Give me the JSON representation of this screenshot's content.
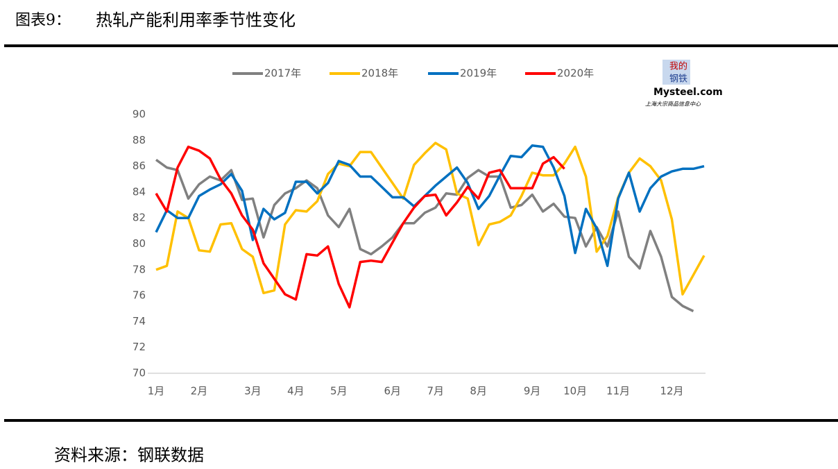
{
  "header": {
    "title": "图表9：",
    "subtitle": "热轧产能利用率季节性变化"
  },
  "logo": {
    "top": "我的",
    "middle": "钢铁",
    "brand": "Mysteel.com",
    "caption": "上海大宗商品信息中心"
  },
  "source": "资料来源：钢联数据",
  "chart_data": {
    "type": "line",
    "categories": [
      "1月",
      null,
      null,
      null,
      "2月",
      null,
      null,
      null,
      null,
      "3月",
      null,
      null,
      null,
      "4月",
      null,
      null,
      null,
      "5月",
      null,
      null,
      null,
      null,
      "6月",
      null,
      null,
      null,
      "7月",
      null,
      null,
      null,
      "8月",
      null,
      null,
      null,
      null,
      "9月",
      null,
      null,
      null,
      "10月",
      null,
      null,
      null,
      "11月",
      null,
      null,
      null,
      null,
      "12月",
      null,
      null,
      null
    ],
    "ylim": [
      70,
      90
    ],
    "yticks": [
      70,
      72,
      74,
      76,
      78,
      80,
      82,
      84,
      86,
      88,
      90
    ],
    "grid": false,
    "legend": "top",
    "series": [
      {
        "name": "2017年",
        "color": "#808080",
        "values": [
          86.5,
          85.9,
          85.7,
          83.5,
          84.6,
          85.2,
          84.9,
          85.7,
          83.4,
          83.5,
          80.5,
          83.0,
          83.9,
          84.3,
          84.9,
          84.3,
          82.2,
          81.3,
          82.7,
          79.6,
          79.2,
          79.8,
          80.5,
          81.6,
          81.6,
          82.4,
          82.8,
          83.9,
          83.8,
          85.1,
          85.7,
          85.2,
          85.2,
          82.8,
          83.0,
          83.8,
          82.5,
          83.1,
          82.1,
          82.0,
          79.8,
          81.3,
          79.8,
          82.5,
          79.0,
          78.1,
          81.0,
          79.0,
          75.9,
          75.2,
          74.8,
          null
        ]
      },
      {
        "name": "2018年",
        "color": "#FFC000",
        "values": [
          78.0,
          78.3,
          82.5,
          82.0,
          79.5,
          79.4,
          81.5,
          81.6,
          79.6,
          79.0,
          76.2,
          76.4,
          81.5,
          82.6,
          82.5,
          83.3,
          85.4,
          86.2,
          86.0,
          87.1,
          87.1,
          85.9,
          84.7,
          83.5,
          86.1,
          87.0,
          87.8,
          87.3,
          83.9,
          83.5,
          79.9,
          81.5,
          81.7,
          82.2,
          83.7,
          85.5,
          85.3,
          85.3,
          86.2,
          87.5,
          85.2,
          79.4,
          80.6,
          83.6,
          85.5,
          86.6,
          86.0,
          84.9,
          81.9,
          76.1,
          77.6,
          79.1
        ]
      },
      {
        "name": "2019年",
        "color": "#0070C0",
        "values": [
          80.9,
          82.6,
          82.0,
          82.0,
          83.7,
          84.2,
          84.6,
          85.4,
          84.1,
          80.3,
          82.7,
          81.9,
          82.4,
          84.8,
          84.8,
          83.9,
          84.7,
          86.4,
          86.1,
          85.2,
          85.2,
          84.4,
          83.6,
          83.6,
          82.9,
          83.7,
          84.5,
          85.2,
          85.9,
          84.7,
          82.7,
          83.7,
          85.3,
          86.8,
          86.7,
          87.6,
          87.5,
          85.9,
          83.7,
          79.3,
          82.7,
          81.2,
          78.3,
          83.5,
          85.5,
          82.5,
          84.3,
          85.2,
          85.6,
          85.8,
          85.8,
          86.0
        ]
      },
      {
        "name": "2020年",
        "color": "#FF0000",
        "values": [
          83.9,
          82.5,
          85.9,
          87.5,
          87.2,
          86.6,
          85.0,
          83.9,
          82.2,
          81.1,
          78.5,
          77.3,
          76.1,
          75.7,
          79.2,
          79.1,
          79.8,
          76.9,
          75.1,
          78.6,
          78.7,
          78.6,
          80.1,
          81.6,
          82.8,
          83.7,
          83.8,
          82.2,
          83.2,
          84.4,
          83.5,
          85.5,
          85.7,
          84.3,
          84.3,
          84.3,
          86.2,
          86.7,
          85.8,
          null,
          null,
          null,
          null,
          null,
          null,
          null,
          null,
          null,
          null,
          null,
          null,
          null
        ]
      }
    ]
  }
}
